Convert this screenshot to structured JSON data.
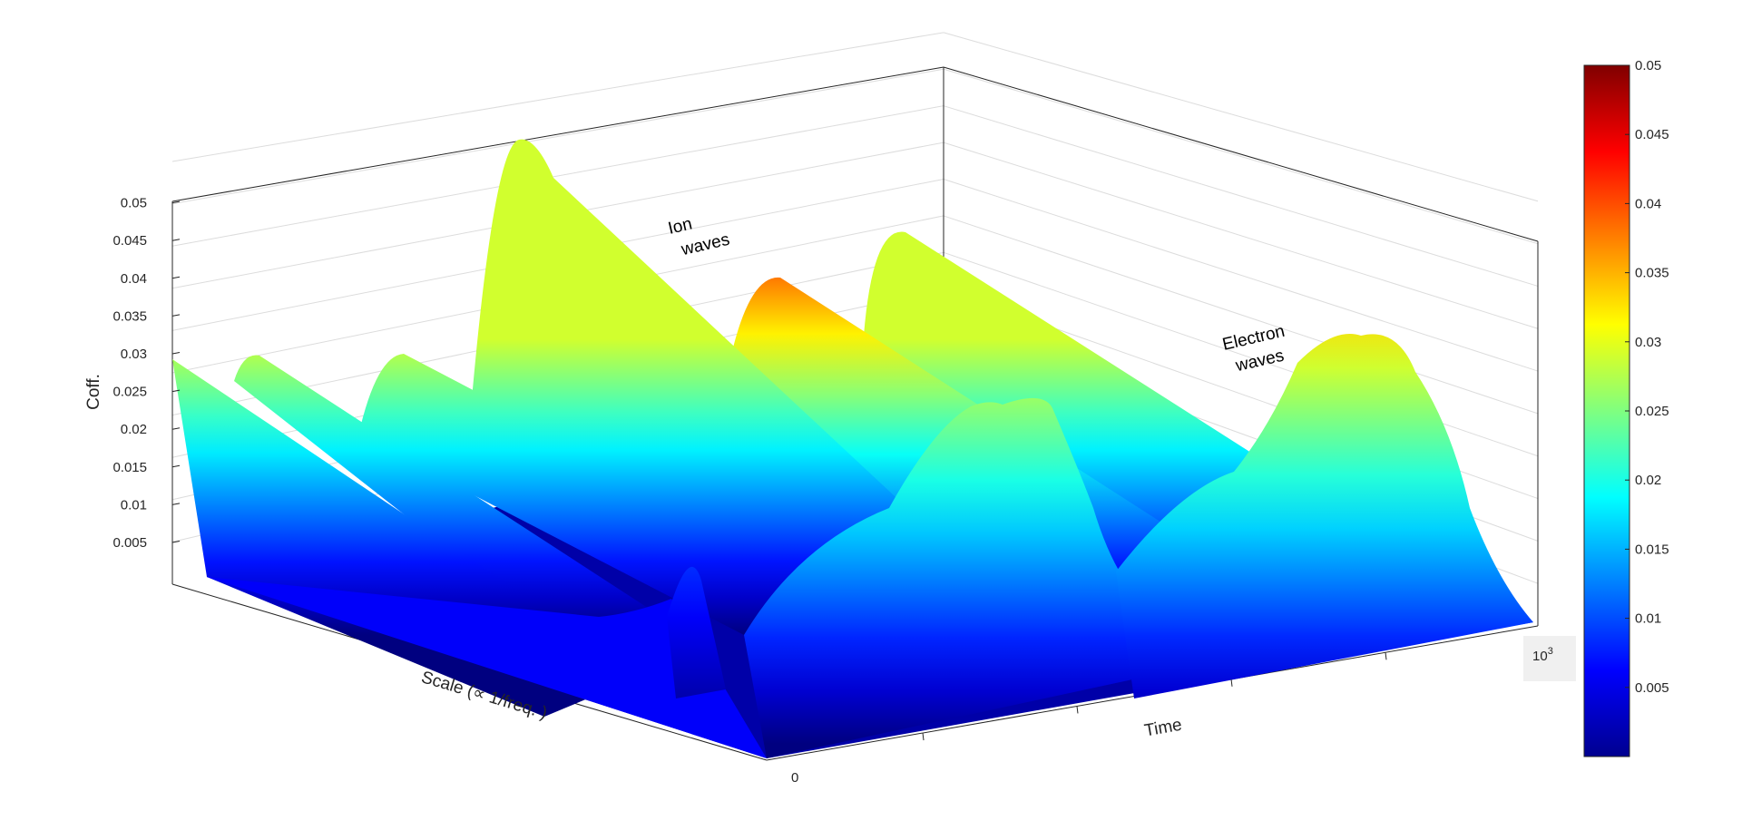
{
  "chart_data": {
    "type": "surface",
    "title": "",
    "xlabel": "Time",
    "ylabel": "Scale (∝ 1/freq. )",
    "zlabel": "Coff.",
    "x_axis": {
      "start_label": "0",
      "exponent_label": "10",
      "exponent_power": "3"
    },
    "zlim": [
      0,
      0.05
    ],
    "zticks": [
      "0.005",
      "0.01",
      "0.015",
      "0.02",
      "0.025",
      "0.03",
      "0.035",
      "0.04",
      "0.045",
      "0.05"
    ],
    "colormap": "jet",
    "colorbar": {
      "range": [
        0,
        0.05
      ],
      "ticks": [
        "0.005",
        "0.01",
        "0.015",
        "0.02",
        "0.025",
        "0.03",
        "0.035",
        "0.04",
        "0.045",
        "0.05"
      ]
    },
    "grid": true,
    "annotations": [
      {
        "name": "ion",
        "lines": [
          "Ion",
          "waves"
        ]
      },
      {
        "name": "electron",
        "lines": [
          "Electron",
          "waves"
        ]
      }
    ],
    "ridges": [
      {
        "name": "ridge-1",
        "peak": 0.029
      },
      {
        "name": "ridge-2",
        "peak": 0.029
      },
      {
        "name": "ridge-3",
        "peak": 0.029
      },
      {
        "name": "ridge-4",
        "peak": 0.051
      },
      {
        "name": "ridge-5",
        "peak": 0.029
      },
      {
        "name": "ridge-6",
        "peak": 0.0285
      }
    ],
    "bumps": [
      {
        "name": "bump-small",
        "peak": 0.012
      },
      {
        "name": "bump-electron-1",
        "peak": 0.032
      },
      {
        "name": "bump-electron-2",
        "peak": 0.033
      }
    ]
  }
}
